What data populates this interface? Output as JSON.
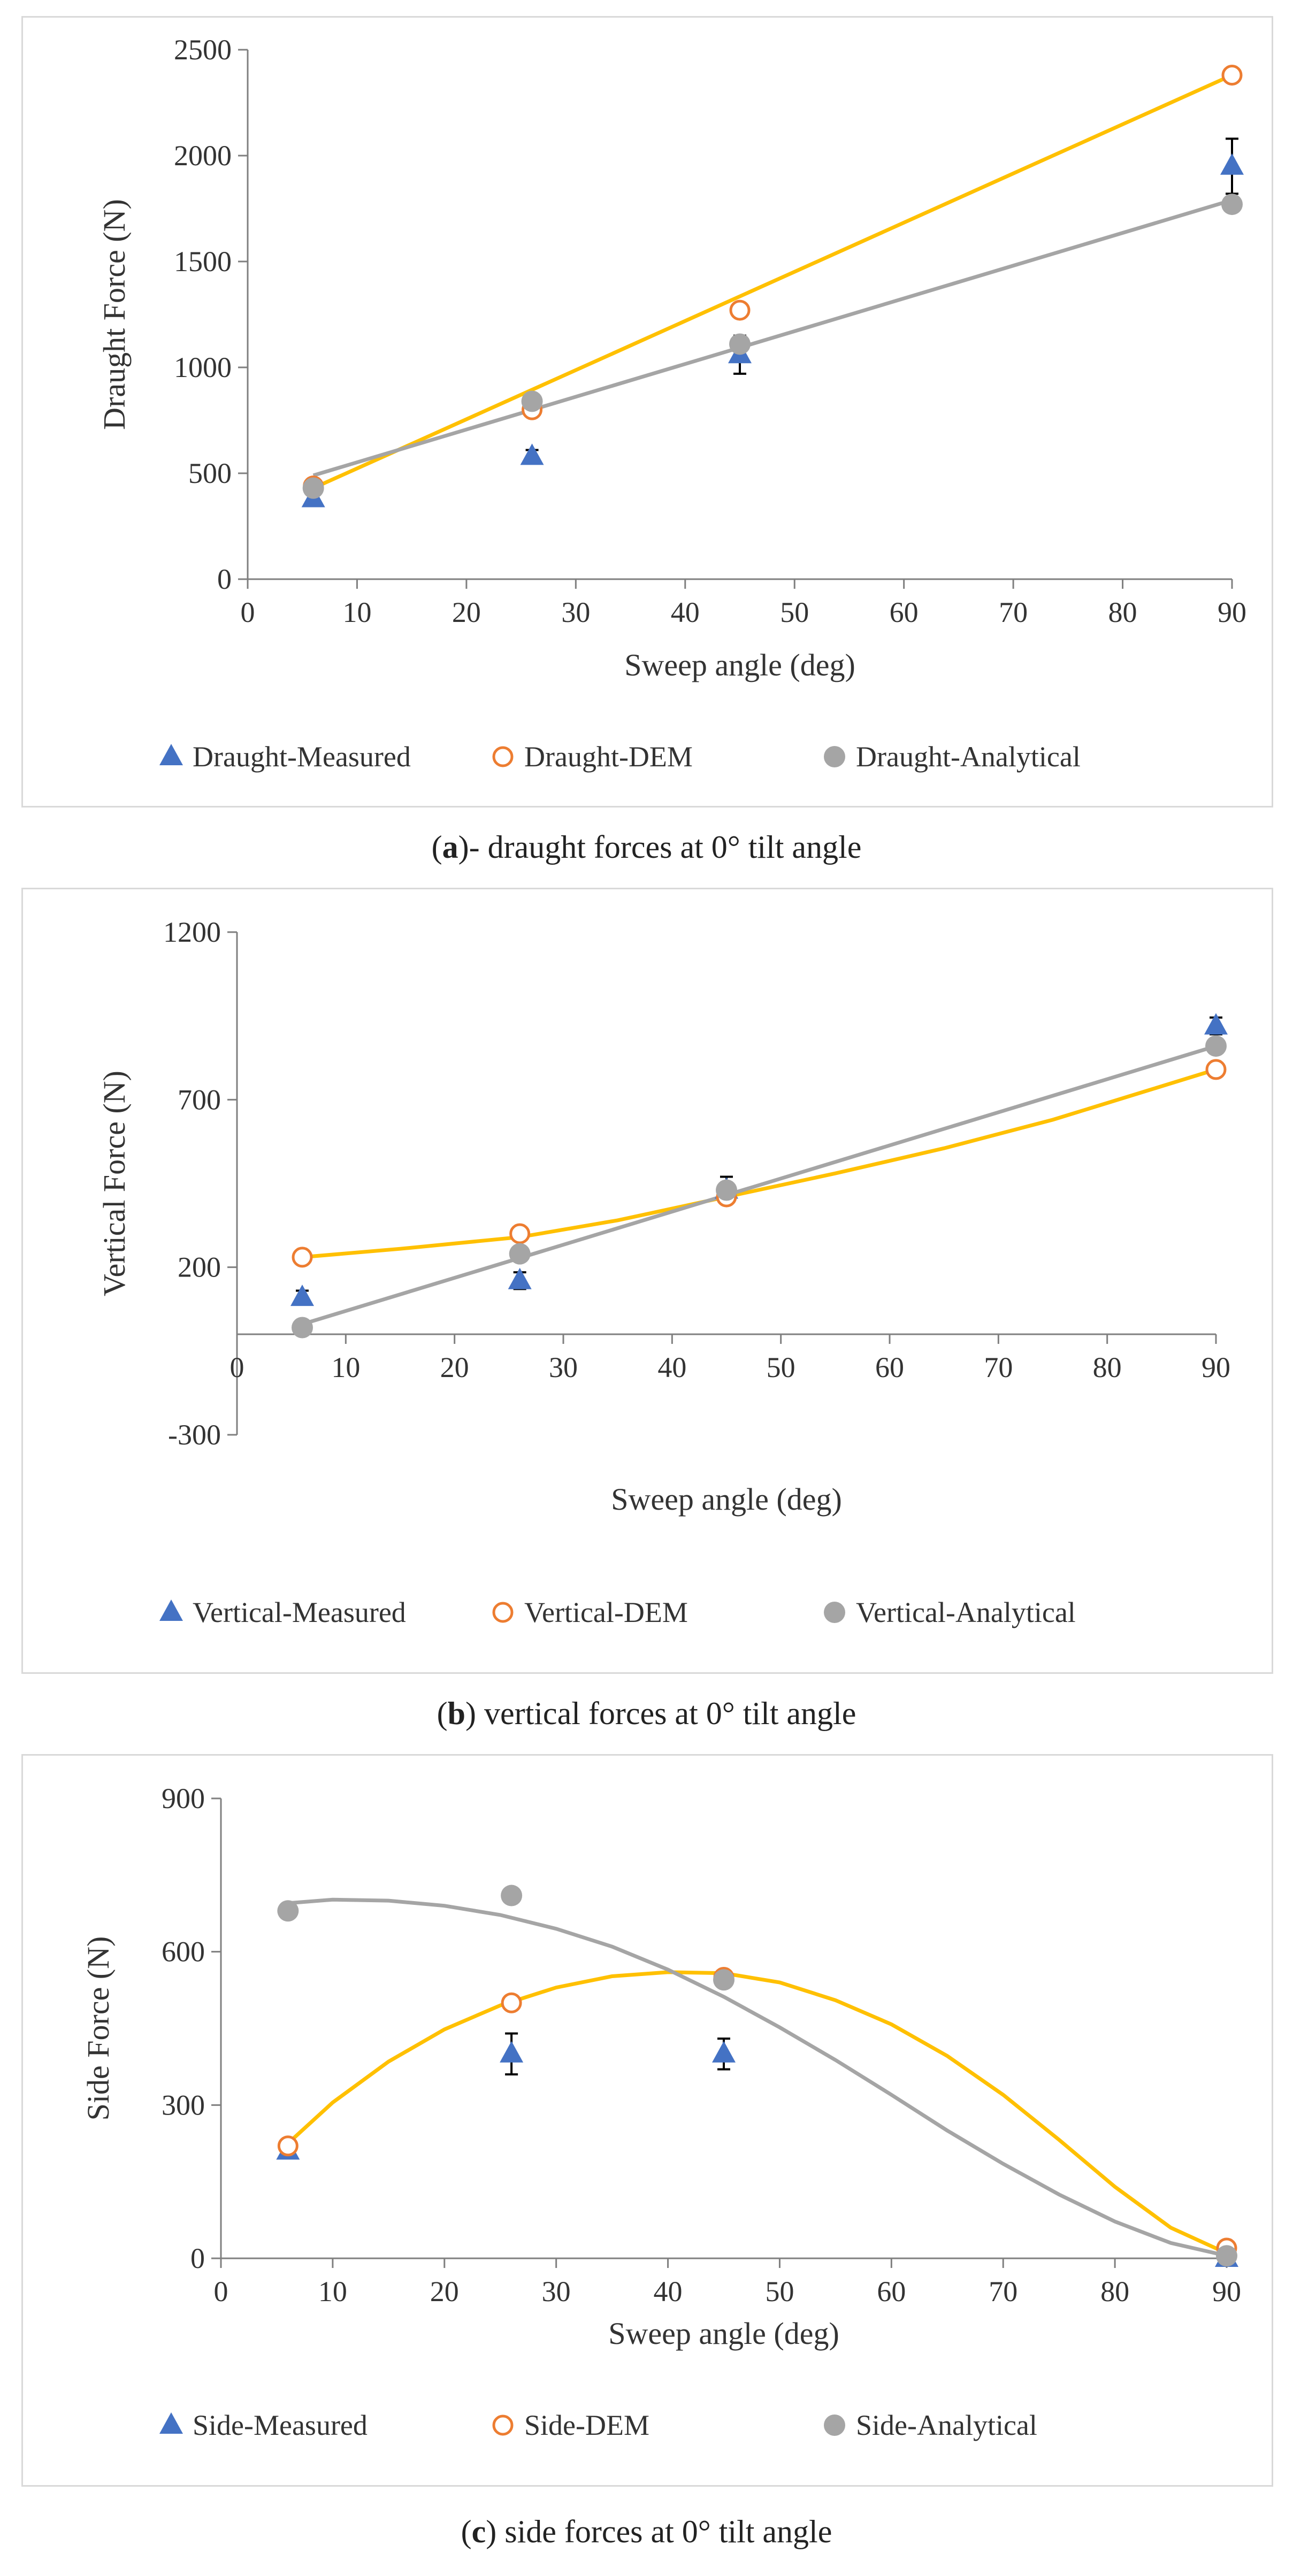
{
  "charts": [
    {
      "type": "scatter",
      "title": "",
      "xlabel": "Sweep angle (deg)",
      "ylabel": "Draught Force (N)",
      "xlim": [
        0,
        90
      ],
      "ylim": [
        0,
        2500
      ],
      "xticks": [
        0,
        10,
        20,
        30,
        40,
        50,
        60,
        70,
        80,
        90
      ],
      "yticks": [
        0,
        500,
        1000,
        1500,
        2000,
        2500
      ],
      "caption_prefix": "(",
      "caption_label": "a",
      "caption_suffix": ")- draught forces at 0° tilt angle",
      "series": [
        {
          "name": "Draught-Measured",
          "marker": "triangle",
          "color": "#4472c4",
          "x": [
            6,
            26,
            45,
            90
          ],
          "y": [
            380,
            580,
            1060,
            1950
          ],
          "err": [
            30,
            30,
            90,
            130
          ]
        },
        {
          "name": "Draught-DEM",
          "marker": "circle-open",
          "color": "#ed7d31",
          "x": [
            6,
            26,
            45,
            90
          ],
          "y": [
            440,
            800,
            1270,
            2380
          ]
        },
        {
          "name": "Draught-Analytical",
          "marker": "circle",
          "color": "#a5a5a5",
          "x": [
            6,
            26,
            45,
            90
          ],
          "y": [
            430,
            840,
            1110,
            1770
          ]
        }
      ],
      "trendlines": [
        {
          "color": "#ffc000",
          "points": [
            [
              6,
              430
            ],
            [
              90,
              2380
            ]
          ]
        },
        {
          "color": "#a5a5a5",
          "points": [
            [
              6,
              490
            ],
            [
              90,
              1790
            ]
          ]
        }
      ]
    },
    {
      "type": "scatter",
      "title": "",
      "xlabel": "Sweep angle (deg)",
      "ylabel": "Vertical Force (N)",
      "xlim": [
        0,
        90
      ],
      "ylim": [
        -300,
        1200
      ],
      "xticks": [
        0,
        10,
        20,
        30,
        40,
        50,
        60,
        70,
        80,
        90
      ],
      "yticks": [
        -300,
        200,
        700,
        1200
      ],
      "caption_prefix": "(",
      "caption_label": "b",
      "caption_suffix": ") vertical forces at 0° tilt angle",
      "series": [
        {
          "name": "Vertical-Measured",
          "marker": "triangle",
          "color": "#4472c4",
          "x": [
            6,
            26,
            45,
            90
          ],
          "y": [
            110,
            160,
            430,
            920
          ],
          "err": [
            20,
            25,
            40,
            25
          ]
        },
        {
          "name": "Vertical-DEM",
          "marker": "circle-open",
          "color": "#ed7d31",
          "x": [
            6,
            26,
            45,
            90
          ],
          "y": [
            230,
            300,
            410,
            790
          ]
        },
        {
          "name": "Vertical-Analytical",
          "marker": "circle",
          "color": "#a5a5a5",
          "x": [
            6,
            26,
            45,
            90
          ],
          "y": [
            20,
            240,
            430,
            860
          ]
        }
      ],
      "trendlines": [
        {
          "color": "#ffc000",
          "points": [
            [
              6,
              230
            ],
            [
              15,
              255
            ],
            [
              26,
              290
            ],
            [
              35,
              340
            ],
            [
              45,
              410
            ],
            [
              55,
              480
            ],
            [
              65,
              555
            ],
            [
              75,
              640
            ],
            [
              90,
              790
            ]
          ]
        },
        {
          "color": "#a5a5a5",
          "points": [
            [
              6,
              30
            ],
            [
              90,
              860
            ]
          ]
        }
      ]
    },
    {
      "type": "scatter",
      "title": "",
      "xlabel": "Sweep angle (deg)",
      "ylabel": "Side  Force (N)",
      "xlim": [
        0,
        90
      ],
      "ylim": [
        0,
        900
      ],
      "xticks": [
        0,
        10,
        20,
        30,
        40,
        50,
        60,
        70,
        80,
        90
      ],
      "yticks": [
        0,
        300,
        600,
        900
      ],
      "caption_prefix": "(",
      "caption_label": "c",
      "caption_suffix": ") side forces at 0° tilt angle",
      "series": [
        {
          "name": "Side-Measured",
          "marker": "triangle",
          "color": "#4472c4",
          "x": [
            6,
            26,
            45,
            90
          ],
          "y": [
            210,
            400,
            400,
            0
          ],
          "err": [
            10,
            40,
            30,
            0
          ]
        },
        {
          "name": "Side-DEM",
          "marker": "circle-open",
          "color": "#ed7d31",
          "x": [
            6,
            26,
            45,
            90
          ],
          "y": [
            220,
            500,
            550,
            20
          ]
        },
        {
          "name": "Side-Analytical",
          "marker": "circle",
          "color": "#a5a5a5",
          "x": [
            6,
            26,
            45,
            90
          ],
          "y": [
            680,
            710,
            545,
            5
          ]
        }
      ],
      "trendlines": [
        {
          "color": "#ffc000",
          "points": [
            [
              6,
              225
            ],
            [
              10,
              305
            ],
            [
              15,
              385
            ],
            [
              20,
              448
            ],
            [
              25,
              495
            ],
            [
              30,
              530
            ],
            [
              35,
              552
            ],
            [
              40,
              560
            ],
            [
              45,
              558
            ],
            [
              50,
              540
            ],
            [
              55,
              505
            ],
            [
              60,
              458
            ],
            [
              65,
              396
            ],
            [
              70,
              320
            ],
            [
              75,
              232
            ],
            [
              80,
              140
            ],
            [
              85,
              60
            ],
            [
              90,
              10
            ]
          ]
        },
        {
          "color": "#a5a5a5",
          "points": [
            [
              6,
              695
            ],
            [
              10,
              702
            ],
            [
              15,
              700
            ],
            [
              20,
              690
            ],
            [
              25,
              672
            ],
            [
              30,
              645
            ],
            [
              35,
              610
            ],
            [
              40,
              565
            ],
            [
              45,
              512
            ],
            [
              50,
              452
            ],
            [
              55,
              388
            ],
            [
              60,
              320
            ],
            [
              65,
              250
            ],
            [
              70,
              185
            ],
            [
              75,
              125
            ],
            [
              80,
              72
            ],
            [
              85,
              30
            ],
            [
              90,
              5
            ]
          ]
        }
      ]
    }
  ]
}
